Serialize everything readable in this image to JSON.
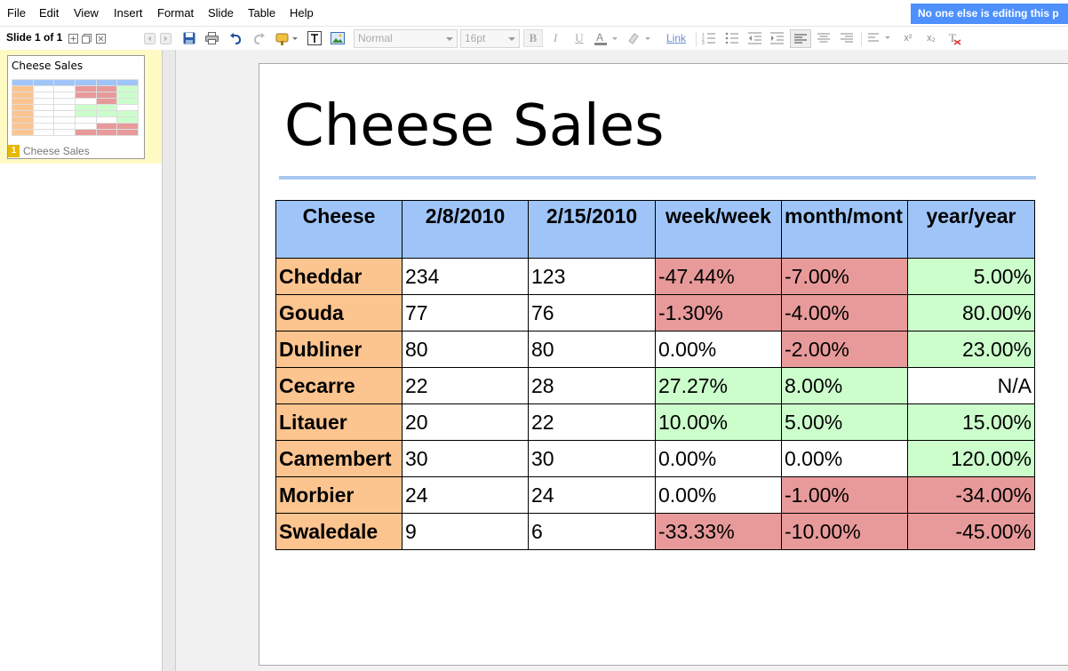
{
  "menu": [
    "File",
    "Edit",
    "View",
    "Insert",
    "Format",
    "Slide",
    "Table",
    "Help"
  ],
  "collab_notice": "No one else is editing this p",
  "toolbar": {
    "slide_count": "Slide 1 of 1",
    "style_select": "Normal",
    "size_select": "16pt",
    "link_label": "Link"
  },
  "filmstrip": {
    "slide_number": "1",
    "slide_label": "Cheese Sales",
    "thumb_title": "Cheese Sales"
  },
  "slide": {
    "title": "Cheese Sales",
    "table": {
      "headers": [
        "Cheese",
        "2/8/2010",
        "2/15/2010",
        "week/week",
        "month/mont",
        "year/year"
      ],
      "rows": [
        {
          "name": "Cheddar",
          "c1": "234",
          "c2": "123",
          "ww": "-47.44%",
          "mm": "-7.00%",
          "yy": "5.00%",
          "ww_s": "neg",
          "mm_s": "neg",
          "yy_s": "pos"
        },
        {
          "name": "Gouda",
          "c1": "77",
          "c2": "76",
          "ww": "-1.30%",
          "mm": "-4.00%",
          "yy": "80.00%",
          "ww_s": "neg",
          "mm_s": "neg",
          "yy_s": "pos"
        },
        {
          "name": "Dubliner",
          "c1": "80",
          "c2": "80",
          "ww": "0.00%",
          "mm": "-2.00%",
          "yy": "23.00%",
          "ww_s": "",
          "mm_s": "neg",
          "yy_s": "pos"
        },
        {
          "name": "Cecarre",
          "c1": "22",
          "c2": "28",
          "ww": "27.27%",
          "mm": "8.00%",
          "yy": "N/A",
          "ww_s": "pos",
          "mm_s": "pos",
          "yy_s": ""
        },
        {
          "name": "Litauer",
          "c1": "20",
          "c2": "22",
          "ww": "10.00%",
          "mm": "5.00%",
          "yy": "15.00%",
          "ww_s": "pos",
          "mm_s": "pos",
          "yy_s": "pos"
        },
        {
          "name": "Camembert",
          "c1": "30",
          "c2": "30",
          "ww": "0.00%",
          "mm": "0.00%",
          "yy": "120.00%",
          "ww_s": "",
          "mm_s": "",
          "yy_s": "pos"
        },
        {
          "name": "Morbier",
          "c1": "24",
          "c2": "24",
          "ww": "0.00%",
          "mm": "-1.00%",
          "yy": "-34.00%",
          "ww_s": "",
          "mm_s": "neg",
          "yy_s": "neg"
        },
        {
          "name": "Swaledale",
          "c1": "9",
          "c2": "6",
          "ww": "-33.33%",
          "mm": "-10.00%",
          "yy": "-45.00%",
          "ww_s": "neg",
          "mm_s": "neg",
          "yy_s": "neg"
        }
      ]
    }
  },
  "colors": {
    "header_bg": "#9fc5f8",
    "name_bg": "#fcc48f",
    "negative_bg": "#e89a9a",
    "positive_bg": "#ccfecc",
    "collab_bg": "#4d90fe"
  }
}
